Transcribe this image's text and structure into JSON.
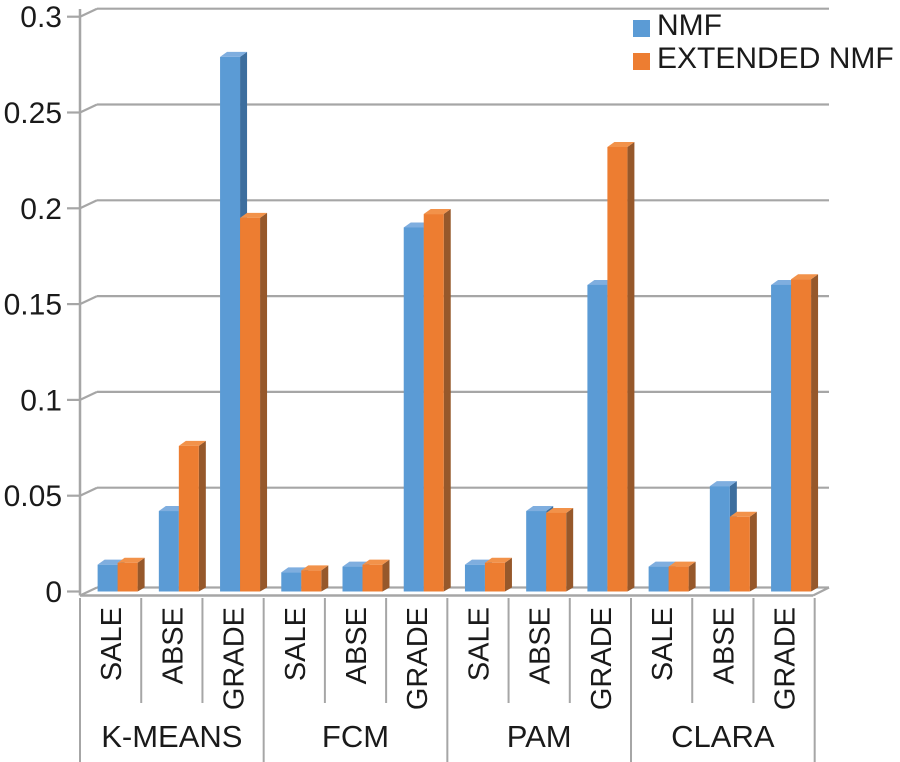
{
  "chart_data": {
    "type": "bar",
    "style": "3d-bevel-clustered",
    "title": "",
    "xlabel": "",
    "ylabel": "",
    "groups": [
      "K-MEANS",
      "FCM",
      "PAM",
      "CLARA"
    ],
    "categories": [
      "SALE",
      "ABSE",
      "GRADE"
    ],
    "series": [
      {
        "name": "NMF",
        "color": "#5B9BD5",
        "side_color": "#3D6E9E",
        "top_color": "#7FAEDF",
        "values": [
          [
            0.014,
            0.042,
            0.279
          ],
          [
            0.01,
            0.013,
            0.19
          ],
          [
            0.014,
            0.042,
            0.16
          ],
          [
            0.013,
            0.055,
            0.16
          ]
        ]
      },
      {
        "name": "EXTENDED NMF",
        "color": "#ED7D31",
        "side_color": "#96582B",
        "top_color": "#F2924A",
        "values": [
          [
            0.015,
            0.076,
            0.195
          ],
          [
            0.011,
            0.014,
            0.197
          ],
          [
            0.015,
            0.041,
            0.232
          ],
          [
            0.013,
            0.039,
            0.163
          ]
        ]
      }
    ],
    "y_axis": {
      "min": 0,
      "max": 0.3,
      "step": 0.05,
      "tick_labels": [
        "0",
        "0.05",
        "0.1",
        "0.15",
        "0.2",
        "0.25",
        "0.3"
      ]
    },
    "legend": {
      "position": "top-right",
      "entries": [
        {
          "label": "NMF",
          "color": "#5B9BD5"
        },
        {
          "label": "EXTENDED NMF",
          "color": "#ED7D31"
        }
      ]
    },
    "grid": true,
    "colors": {
      "grid": "#A6A6A6",
      "axis": "#A6A6A6",
      "text": "#1A1A1A",
      "background": "#FFFFFF"
    }
  }
}
